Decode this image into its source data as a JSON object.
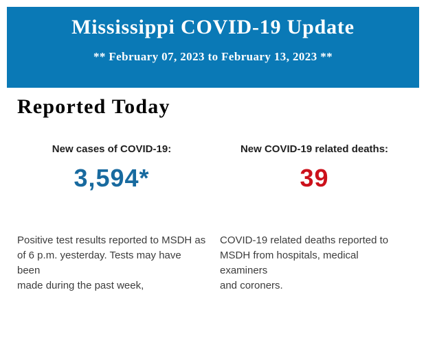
{
  "banner": {
    "title": "Mississippi COVID-19 Update",
    "subtitle": "** February 07, 2023 to February 13, 2023 **",
    "background_color": "#0a79b6",
    "text_color": "#ffffff"
  },
  "main": {
    "heading": "Reported Today",
    "stats": [
      {
        "label": "New cases of COVID-19:",
        "value": "3,594*",
        "value_color": "#186a9f",
        "description": "Positive test results reported to MSDH as\nof 6 p.m. yesterday. Tests may have been\nmade during the past week,"
      },
      {
        "label": "New COVID-19 related deaths:",
        "value": "39",
        "value_color": "#cc111b",
        "description": "COVID-19 related deaths reported to\nMSDH from hospitals, medical examiners\nand coroners."
      }
    ]
  }
}
